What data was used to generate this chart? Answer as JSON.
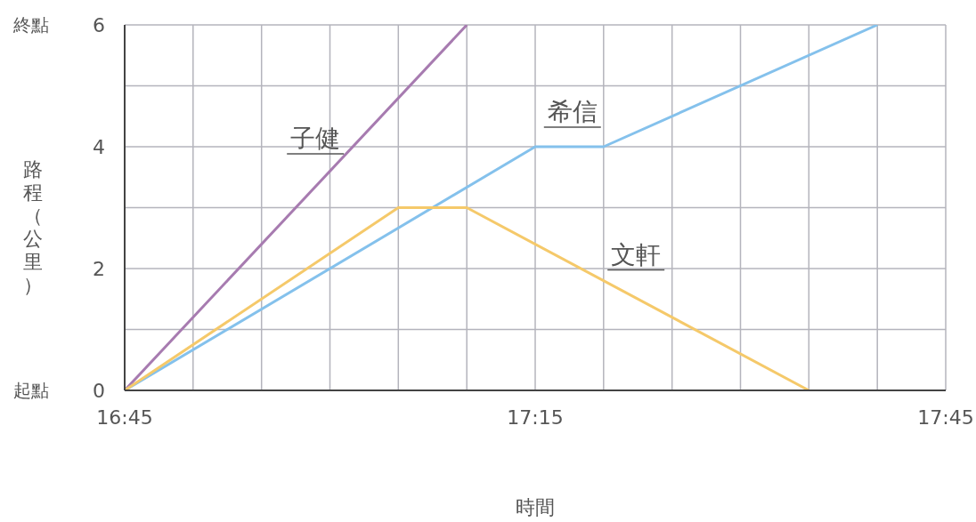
{
  "chart_data": {
    "type": "line",
    "xlabel": "時間",
    "ylabel": "路程（公里）",
    "xlim": [
      16.75,
      17.75
    ],
    "xticks": [
      {
        "value": 16.75,
        "label": "16:45"
      },
      {
        "value": 16.8333,
        "label": null
      },
      {
        "value": 16.9167,
        "label": null
      },
      {
        "value": 17,
        "label": null
      },
      {
        "value": 17.0833,
        "label": null
      },
      {
        "value": 17.1667,
        "label": null
      },
      {
        "value": 17.25,
        "label": "17:15"
      },
      {
        "value": 17.3333,
        "label": null
      },
      {
        "value": 17.4167,
        "label": null
      },
      {
        "value": 17.5,
        "label": null
      },
      {
        "value": 17.5833,
        "label": null
      },
      {
        "value": 17.6667,
        "label": null
      },
      {
        "value": 17.75,
        "label": "17:45"
      }
    ],
    "ylim": [
      0,
      6
    ],
    "yticks": [
      0,
      {
        "value": 1,
        "label": null
      },
      2,
      {
        "value": 3,
        "label": null
      },
      4,
      {
        "value": 5,
        "label": null
      },
      6
    ],
    "annotations": [
      "起點",
      "終點"
    ],
    "grid": true,
    "marker": "none",
    "line_style": "solid",
    "series": [
      {
        "name": "子健",
        "color": "#a77bb0",
        "x": [
          16.75,
          17.1667
        ],
        "values": [
          0,
          6
        ]
      },
      {
        "name": "希信",
        "color": "#84c1ec",
        "x": [
          16.75,
          17.25,
          17.3333,
          17.6667
        ],
        "values": [
          0,
          4,
          4,
          6
        ]
      },
      {
        "name": "文軒",
        "color": "#f5c96a",
        "x": [
          16.75,
          17.0833,
          17.1667,
          17.5833
        ],
        "values": [
          0,
          3,
          3,
          0
        ]
      }
    ]
  }
}
